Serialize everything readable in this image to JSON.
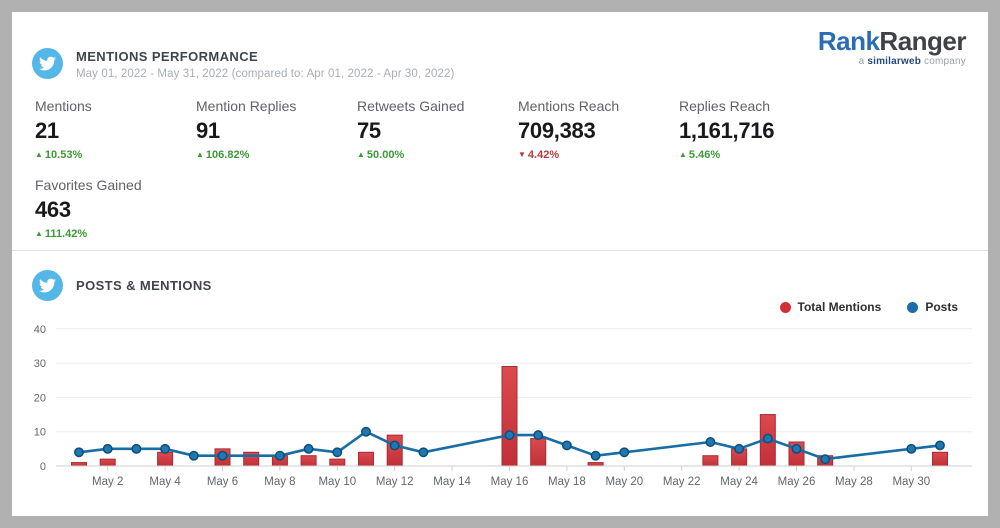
{
  "logo": {
    "part1": "Rank",
    "part2": "Ranger",
    "tagline_prefix": "a",
    "tagline_brand": "similarweb",
    "tagline_suffix": "company"
  },
  "mentions_performance": {
    "title": "MENTIONS PERFORMANCE",
    "subtitle": "May 01, 2022 - May 31, 2022 (compared to: Apr 01, 2022 - Apr 30, 2022)",
    "icon": "twitter-icon",
    "kpis": [
      {
        "label": "Mentions",
        "value": "21",
        "delta": "10.53%",
        "direction": "up"
      },
      {
        "label": "Mention Replies",
        "value": "91",
        "delta": "106.82%",
        "direction": "up"
      },
      {
        "label": "Retweets Gained",
        "value": "75",
        "delta": "50.00%",
        "direction": "up"
      },
      {
        "label": "Mentions Reach",
        "value": "709,383",
        "delta": "4.42%",
        "direction": "down"
      },
      {
        "label": "Replies Reach",
        "value": "1,161,716",
        "delta": "5.46%",
        "direction": "up"
      },
      {
        "label": "Favorites Gained",
        "value": "463",
        "delta": "111.42%",
        "direction": "up"
      }
    ]
  },
  "posts_mentions": {
    "title": "POSTS & MENTIONS",
    "icon": "twitter-icon",
    "legend": [
      {
        "label": "Total Mentions",
        "color": "#d22f39"
      },
      {
        "label": "Posts",
        "color": "#1b6ca8"
      }
    ]
  },
  "chart_data": {
    "type": "combo-bar-line",
    "title": "Posts & Mentions",
    "x_unit": "days of May 2022 (May 1 - May 31)",
    "x_tick_days": [
      2,
      4,
      6,
      8,
      10,
      12,
      14,
      16,
      18,
      20,
      22,
      24,
      26,
      28,
      30
    ],
    "x_tick_labels": [
      "May 2",
      "May 4",
      "May 6",
      "May 8",
      "May 10",
      "May 12",
      "May 14",
      "May 16",
      "May 18",
      "May 20",
      "May 22",
      "May 24",
      "May 26",
      "May 28",
      "May 30"
    ],
    "y_ticks": [
      0,
      10,
      20,
      30,
      40
    ],
    "ylim": [
      0,
      44
    ],
    "grid": "horizontal",
    "legend_position": "top-right",
    "series": [
      {
        "name": "Total Mentions",
        "type": "bar",
        "color": "#ce3940",
        "values_by_day": [
          1,
          2,
          0,
          4,
          0,
          5,
          4,
          3,
          3,
          2,
          4,
          9,
          0,
          0,
          0,
          29,
          8,
          0,
          1,
          0,
          0,
          0,
          3,
          5,
          15,
          7,
          3,
          0,
          0,
          0,
          4
        ]
      },
      {
        "name": "Posts",
        "type": "line",
        "color": "#176da4",
        "points": [
          {
            "day": 1,
            "value": 4
          },
          {
            "day": 2,
            "value": 5
          },
          {
            "day": 3,
            "value": 5
          },
          {
            "day": 4,
            "value": 5
          },
          {
            "day": 5,
            "value": 3
          },
          {
            "day": 6,
            "value": 3
          },
          {
            "day": 8,
            "value": 3
          },
          {
            "day": 9,
            "value": 5
          },
          {
            "day": 10,
            "value": 4
          },
          {
            "day": 11,
            "value": 10
          },
          {
            "day": 12,
            "value": 6
          },
          {
            "day": 13,
            "value": 4
          },
          {
            "day": 16,
            "value": 9
          },
          {
            "day": 17,
            "value": 9
          },
          {
            "day": 18,
            "value": 6
          },
          {
            "day": 19,
            "value": 3
          },
          {
            "day": 20,
            "value": 4
          },
          {
            "day": 23,
            "value": 7
          },
          {
            "day": 24,
            "value": 5
          },
          {
            "day": 25,
            "value": 8
          },
          {
            "day": 26,
            "value": 5
          },
          {
            "day": 27,
            "value": 2
          },
          {
            "day": 30,
            "value": 5
          },
          {
            "day": 31,
            "value": 6
          }
        ]
      }
    ]
  }
}
